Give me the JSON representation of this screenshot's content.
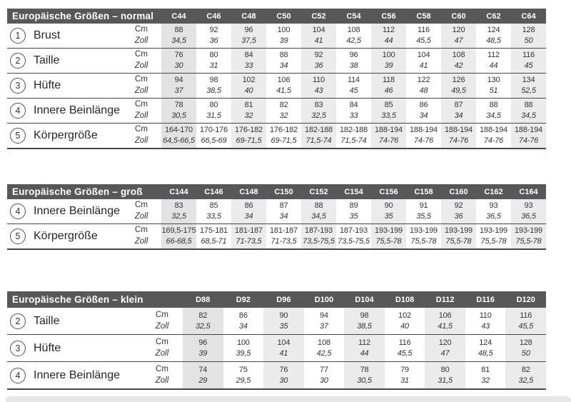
{
  "colors": {
    "header_bg": "#58585a",
    "header_text": "#ffffff",
    "stripe": "#ebebeb",
    "stripe_first": "#e3e3e3",
    "rule": "#474747",
    "text": "#333333",
    "bottom_bar": "#e7e7e7"
  },
  "unit_labels": {
    "cm": "Cm",
    "zoll": "Zoll"
  },
  "tables": [
    {
      "id": "normal",
      "title": "Europäische Größen – normal",
      "columns": [
        "C44",
        "C46",
        "C48",
        "C50",
        "C52",
        "C54",
        "C56",
        "C58",
        "C60",
        "C62",
        "C64"
      ],
      "rows": [
        {
          "num": "1",
          "label": "Brust",
          "cm": [
            "88",
            "92",
            "96",
            "100",
            "104",
            "108",
            "112",
            "116",
            "120",
            "124",
            "128"
          ],
          "zoll": [
            "34,5",
            "36",
            "37,5",
            "39",
            "41",
            "42,5",
            "44",
            "45,5",
            "47",
            "48,5",
            "50"
          ]
        },
        {
          "num": "2",
          "label": "Taille",
          "cm": [
            "76",
            "80",
            "84",
            "88",
            "92",
            "96",
            "100",
            "104",
            "108",
            "112",
            "116"
          ],
          "zoll": [
            "30",
            "31",
            "33",
            "34",
            "36",
            "38",
            "39",
            "41",
            "42",
            "44",
            "45"
          ]
        },
        {
          "num": "3",
          "label": "Hüfte",
          "cm": [
            "94",
            "98",
            "102",
            "106",
            "110",
            "114",
            "118",
            "122",
            "126",
            "130",
            "134"
          ],
          "zoll": [
            "37",
            "38,5",
            "40",
            "41,5",
            "43",
            "45",
            "46",
            "48",
            "49,5",
            "51",
            "52,5"
          ]
        },
        {
          "num": "4",
          "label": "Innere Beinlänge",
          "cm": [
            "78",
            "80",
            "81",
            "82",
            "83",
            "84",
            "85",
            "86",
            "87",
            "88",
            "88"
          ],
          "zoll": [
            "30,5",
            "31,5",
            "32",
            "32",
            "32,5",
            "33",
            "33,5",
            "34",
            "34",
            "34,5",
            "34,5"
          ]
        },
        {
          "num": "5",
          "label": "Körpergröße",
          "cm": [
            "164-170",
            "170-176",
            "176-182",
            "176-182",
            "182-188",
            "182-188",
            "188-194",
            "188-194",
            "188-194",
            "188-194",
            "188-194"
          ],
          "zoll": [
            "64,5-66,5",
            "66,5-69",
            "69-71,5",
            "69-71,5",
            "71,5-74",
            "71,5-74",
            "74-76",
            "74-76",
            "74-76",
            "74-76",
            "74-76"
          ]
        }
      ]
    },
    {
      "id": "gross",
      "title": "Europäische Größen – groß",
      "columns": [
        "C144",
        "C146",
        "C148",
        "C150",
        "C152",
        "C154",
        "C156",
        "C158",
        "C160",
        "C162",
        "C164"
      ],
      "rows": [
        {
          "num": "4",
          "label": "Innere Beinlänge",
          "cm": [
            "83",
            "85",
            "86",
            "87",
            "88",
            "89",
            "90",
            "91",
            "92",
            "93",
            "93"
          ],
          "zoll": [
            "32,5",
            "33,5",
            "34",
            "34",
            "34,5",
            "35",
            "35",
            "35,5",
            "36",
            "36,5",
            "36,5"
          ]
        },
        {
          "num": "5",
          "label": "Körpergröße",
          "cm": [
            "169,5-175",
            "175-181",
            "181-187",
            "181-187",
            "187-193",
            "187-193",
            "193-199",
            "193-199",
            "193-199",
            "193-199",
            "193-199"
          ],
          "zoll": [
            "66-68,5",
            "68,5-71",
            "71-73,5",
            "71-73,5",
            "73,5-75,5",
            "73,5-75,5",
            "75,5-78",
            "75,5-78",
            "75,5-78",
            "75,5-78",
            "75,5-78"
          ]
        }
      ]
    },
    {
      "id": "klein",
      "title": "Europäische Größen – klein",
      "columns": [
        "D88",
        "D92",
        "D96",
        "D100",
        "D104",
        "D108",
        "D112",
        "D116",
        "D120"
      ],
      "rows": [
        {
          "num": "2",
          "label": "Taille",
          "cm": [
            "82",
            "86",
            "90",
            "94",
            "98",
            "102",
            "106",
            "110",
            "116"
          ],
          "zoll": [
            "32,5",
            "34",
            "35",
            "37",
            "38,5",
            "40",
            "41,5",
            "43",
            "45,5"
          ]
        },
        {
          "num": "3",
          "label": "Hüfte",
          "cm": [
            "96",
            "100",
            "104",
            "108",
            "112",
            "116",
            "120",
            "124",
            "128"
          ],
          "zoll": [
            "39",
            "39,5",
            "41",
            "42,5",
            "44",
            "45,5",
            "47",
            "48,5",
            "50"
          ]
        },
        {
          "num": "4",
          "label": "Innere Beinlänge",
          "cm": [
            "74",
            "75",
            "76",
            "77",
            "78",
            "79",
            "80",
            "81",
            "82"
          ],
          "zoll": [
            "29",
            "29,5",
            "30",
            "30",
            "30,5",
            "31",
            "31,5",
            "32",
            "32,5"
          ]
        }
      ]
    }
  ]
}
